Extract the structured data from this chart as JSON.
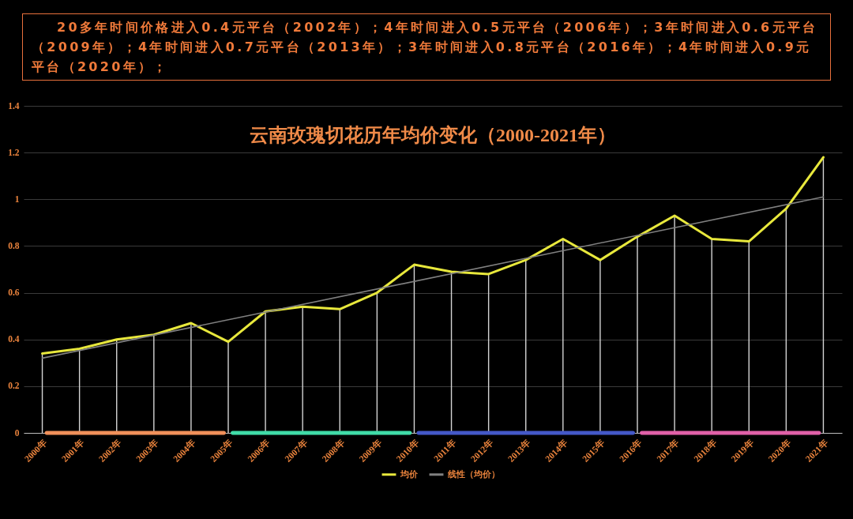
{
  "chart_data": {
    "type": "line",
    "title": "云南玫瑰切花历年均价变化（2000-2021年）",
    "annotations": [
      "20多年时间价格进入0.4元平台（2002年）；4年时间进入0.5元平台（2006年）；3年时间进入0.6元平台（2009年）；4年时间进入0.7元平台（2013年）；3年时间进入0.8元平台（2016年）；4年时间进入0.9元平台（2020年）；"
    ],
    "categories": [
      "2000年",
      "2001年",
      "2002年",
      "2003年",
      "2004年",
      "2005年",
      "2006年",
      "2007年",
      "2008年",
      "2009年",
      "2010年",
      "2011年",
      "2012年",
      "2013年",
      "2014年",
      "2015年",
      "2016年",
      "2017年",
      "2018年",
      "2019年",
      "2020年",
      "2021年"
    ],
    "series": [
      {
        "type": "bar",
        "color": "#d4d4d4",
        "values": [
          0.34,
          0.36,
          0.4,
          0.42,
          0.47,
          0.39,
          0.52,
          0.54,
          0.53,
          0.6,
          0.72,
          0.69,
          0.68,
          0.74,
          0.83,
          0.74,
          0.84,
          0.93,
          0.83,
          0.82,
          0.96,
          1.18
        ]
      },
      {
        "name": "均价",
        "color": "#e8e83c",
        "values": [
          0.34,
          0.36,
          0.4,
          0.42,
          0.47,
          0.39,
          0.52,
          0.54,
          0.53,
          0.6,
          0.72,
          0.69,
          0.68,
          0.74,
          0.83,
          0.74,
          0.84,
          0.93,
          0.83,
          0.82,
          0.96,
          1.18
        ]
      },
      {
        "name": "线性（均价）",
        "color": "#808080",
        "type": "line",
        "x": [
          "2000年",
          "2021年"
        ],
        "values": [
          0.32,
          1.01
        ]
      }
    ],
    "ylim": [
      0,
      1.4
    ],
    "yticks": [
      0,
      0.2,
      0.4,
      0.6,
      0.8,
      1,
      1.2,
      1.4
    ],
    "grid": "y",
    "legend": "bottom"
  }
}
